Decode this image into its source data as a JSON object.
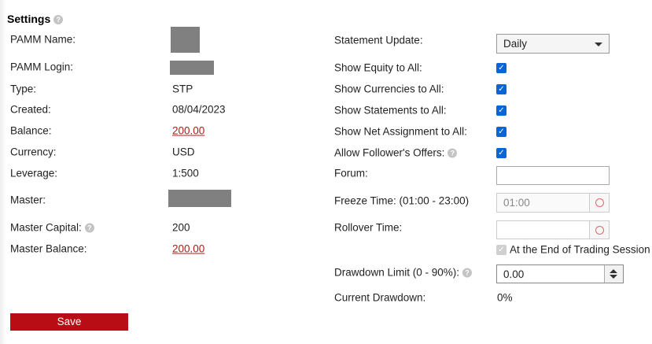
{
  "title": "Settings",
  "left": [
    {
      "label": "PAMM Name:",
      "value": null,
      "redacted": true
    },
    {
      "label": "PAMM Login:",
      "value": null,
      "redacted": true
    },
    {
      "label": "Type:",
      "value": "STP"
    },
    {
      "label": "Created:",
      "value": "08/04/2023"
    },
    {
      "label": "Balance:",
      "value": "200.00",
      "link": true
    },
    {
      "label": "Currency:",
      "value": "USD"
    },
    {
      "label": "Leverage:",
      "value": "1:500"
    },
    {
      "label": "Master:",
      "value": null,
      "redacted": true
    },
    {
      "label": "Master Capital:",
      "value": "200",
      "help": true
    },
    {
      "label": "Master Balance:",
      "value": "200.00",
      "link": true
    }
  ],
  "right": {
    "statement_update": {
      "label": "Statement Update:",
      "value": "Daily"
    },
    "checks": [
      {
        "label": "Show Equity to All:",
        "checked": true
      },
      {
        "label": "Show Currencies to All:",
        "checked": true
      },
      {
        "label": "Show Statements to All:",
        "checked": true
      },
      {
        "label": "Show Net Assignment to All:",
        "checked": true
      },
      {
        "label": "Allow Follower's Offers:",
        "checked": true,
        "help": true
      }
    ],
    "forum": {
      "label": "Forum:",
      "value": ""
    },
    "freeze": {
      "label": "Freeze Time: (01:00 - 23:00)",
      "value": "01:00"
    },
    "rollover": {
      "label": "Rollover Time:",
      "value": ""
    },
    "end_session": {
      "label": "At the End of Trading Session",
      "checked": true,
      "disabled": true
    },
    "drawdown_limit": {
      "label": "Drawdown Limit (0 - 90%):",
      "value": "0.00"
    },
    "current_drawdown": {
      "label": "Current Drawdown:",
      "value": "0%"
    }
  },
  "save_label": "Save",
  "help_glyph": "?",
  "check_glyph": "✓"
}
